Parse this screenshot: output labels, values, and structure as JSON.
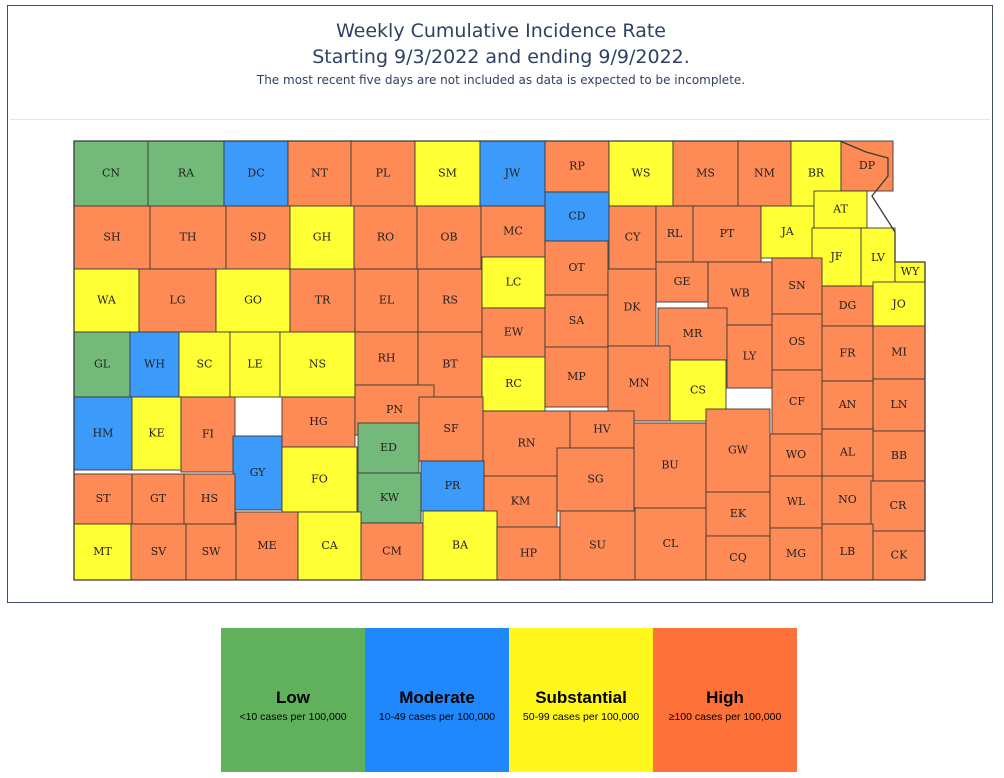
{
  "title_line1": "Weekly Cumulative Incidence Rate",
  "title_line2": "Starting 9/3/2022 and ending 9/9/2022.",
  "subtitle": "The most recent five days are not included as data is expected to be incomplete.",
  "colors": {
    "Low": "#72b97a",
    "Moderate": "#3c9bfa",
    "Substantial": "#ffff33",
    "High": "#fe8a55",
    "legend_Low": "#61b15c",
    "legend_Moderate": "#2088fd",
    "legend_Substantial": "#fff61b",
    "legend_High": "#fe7138",
    "border": "#3a3a3a"
  },
  "legend": [
    {
      "level": "Low",
      "name": "Low",
      "range": "<10 cases per 100,000"
    },
    {
      "level": "Moderate",
      "name": "Moderate",
      "range": "10-49 cases per 100,000"
    },
    {
      "level": "Substantial",
      "name": "Substantial",
      "range": "50-99 cases per 100,000"
    },
    {
      "level": "High",
      "name": "High",
      "range": "≥100 cases per 100,000"
    }
  ],
  "counties": {
    "CN": "Low",
    "RA": "Low",
    "DC": "Moderate",
    "NT": "High",
    "PL": "High",
    "SM": "Substantial",
    "JW": "Moderate",
    "RP": "High",
    "WS": "Substantial",
    "MS": "High",
    "NM": "High",
    "BR": "Substantial",
    "DP": "High",
    "SH": "High",
    "TH": "High",
    "SD": "High",
    "GH": "Substantial",
    "RO": "High",
    "OB": "High",
    "MC": "High",
    "CD": "Moderate",
    "CY": "High",
    "RL": "High",
    "PT": "High",
    "JA": "Substantial",
    "AT": "Substantial",
    "JF": "Substantial",
    "LV": "Substantial",
    "WY": "Substantial",
    "WA": "Substantial",
    "LG": "High",
    "GO": "Substantial",
    "TR": "High",
    "EL": "High",
    "RS": "High",
    "LC": "Substantial",
    "OT": "High",
    "GE": "High",
    "WB": "High",
    "SN": "High",
    "DG": "High",
    "JO": "Substantial",
    "GL": "Low",
    "WH": "Moderate",
    "SC": "Substantial",
    "LE": "Substantial",
    "NS": "Substantial",
    "RH": "High",
    "BT": "High",
    "EW": "High",
    "SA": "High",
    "DK": "High",
    "MR": "High",
    "OS": "High",
    "FR": "High",
    "MI": "High",
    "LY": "High",
    "HM": "Moderate",
    "KE": "Substantial",
    "FI": "High",
    "HG": "High",
    "PN": "High",
    "RC": "Substantial",
    "MP": "High",
    "MN": "High",
    "CS": "Substantial",
    "CF": "High",
    "AN": "High",
    "LN": "High",
    "GY": "Moderate",
    "ED": "Low",
    "SF": "High",
    "RN": "High",
    "HV": "High",
    "BU": "High",
    "GW": "High",
    "WO": "High",
    "AL": "High",
    "BB": "High",
    "ST": "High",
    "GT": "High",
    "HS": "High",
    "FO": "Substantial",
    "KW": "Low",
    "PR": "Moderate",
    "KM": "High",
    "SG": "High",
    "EK": "High",
    "WL": "High",
    "NO": "High",
    "CR": "High",
    "MT": "Substantial",
    "SV": "High",
    "SW": "High",
    "ME": "High",
    "CA": "Substantial",
    "CM": "High",
    "BA": "Substantial",
    "HP": "High",
    "SU": "High",
    "CL": "High",
    "CQ": "High",
    "MG": "High",
    "LB": "High",
    "CK": "High"
  }
}
